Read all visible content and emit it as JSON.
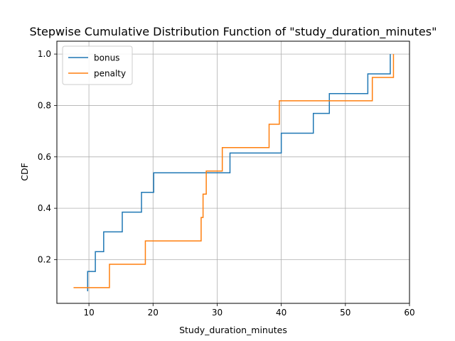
{
  "chart_data": {
    "type": "line",
    "title": "Stepwise Cumulative Distribution Function of \"study_duration_minutes\"",
    "xlabel": "Study_duration_minutes",
    "ylabel": "CDF",
    "xlim": [
      5,
      60
    ],
    "ylim": [
      0.03,
      1.05
    ],
    "xticks": [
      10,
      20,
      30,
      40,
      50,
      60
    ],
    "yticks": [
      0.2,
      0.4,
      0.6,
      0.8,
      1.0
    ],
    "xtick_labels": [
      "10",
      "20",
      "30",
      "40",
      "50",
      "60"
    ],
    "ytick_labels": [
      "0.2",
      "0.4",
      "0.6",
      "0.8",
      "1.0"
    ],
    "grid": true,
    "legend_position": "top-left",
    "step_style": "post",
    "series": [
      {
        "name": "bonus",
        "color": "#1f77b4",
        "x": [
          9.8,
          9.8,
          11.0,
          12.3,
          15.2,
          18.2,
          20.1,
          32.0,
          40.0,
          45.0,
          47.5,
          53.5,
          57.0
        ],
        "y": [
          0.077,
          0.154,
          0.231,
          0.308,
          0.385,
          0.462,
          0.538,
          0.615,
          0.692,
          0.769,
          0.846,
          0.923,
          1.0
        ]
      },
      {
        "name": "penalty",
        "color": "#ff7f0e",
        "x": [
          7.6,
          13.2,
          18.8,
          27.5,
          27.8,
          28.3,
          30.8,
          38.1,
          39.7,
          54.2,
          57.5
        ],
        "y": [
          0.091,
          0.182,
          0.273,
          0.364,
          0.455,
          0.545,
          0.636,
          0.727,
          0.818,
          0.909,
          1.0
        ]
      }
    ]
  }
}
